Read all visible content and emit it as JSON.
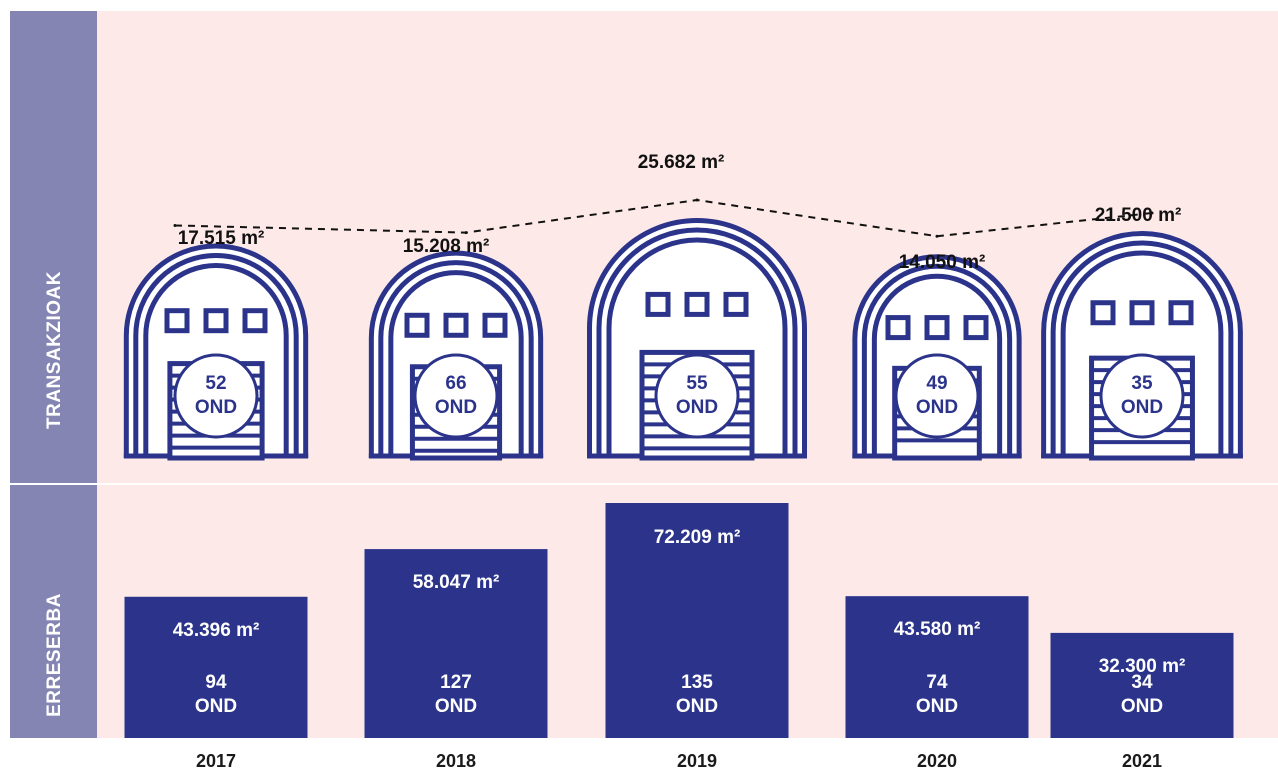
{
  "side_labels": {
    "top": "TRANSAKZIOAK",
    "bottom": "ERRESERBA"
  },
  "colors": {
    "navy": "#2b348a",
    "panel": "#fdeae8",
    "side": "#8485b3"
  },
  "chart_data": [
    {
      "type": "line",
      "title": "TRANSAKZIOAK",
      "categories": [
        "2017",
        "2018",
        "2019",
        "2020",
        "2021"
      ],
      "series": [
        {
          "values": [
            17515,
            15208,
            25682,
            14050,
            21500
          ]
        }
      ],
      "value_labels": [
        "17.515 m²",
        "15.208 m²",
        "25.682 m²",
        "14.050 m²",
        "21.500 m²"
      ],
      "counts": [
        52,
        66,
        55,
        49,
        35
      ],
      "count_labels": [
        "52",
        "66",
        "55",
        "49",
        "35"
      ],
      "count_unit": "OND",
      "icon": "warehouse-icon"
    },
    {
      "type": "bar",
      "title": "ERRESERBA",
      "categories": [
        "2017",
        "2018",
        "2019",
        "2020",
        "2021"
      ],
      "values": [
        43396,
        58047,
        72209,
        43580,
        32300
      ],
      "value_labels": [
        "43.396 m²",
        "58.047 m²",
        "72.209 m²",
        "43.580 m²",
        "32.300 m²"
      ],
      "counts": [
        94,
        127,
        135,
        74,
        34
      ],
      "count_labels": [
        "94",
        "127",
        "135",
        "74",
        "34"
      ],
      "count_unit": "OND"
    }
  ]
}
